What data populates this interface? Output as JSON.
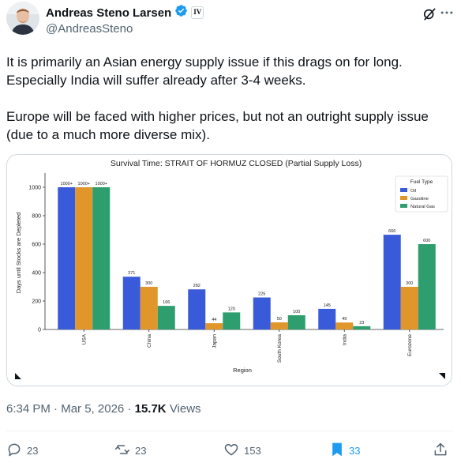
{
  "author": {
    "name": "Andreas Steno Larsen",
    "handle": "@AndreasSteno",
    "verified": true,
    "affiliate_badge": "IV"
  },
  "tweet": {
    "paragraph1": "It is primarily an Asian energy supply issue if this drags on for long. Especially India will suffer already after 3-4 weeks.",
    "paragraph2": "Europe will be faced with higher prices, but not an outright supply issue (due to a much more diverse mix).",
    "time": "6:34 PM",
    "date": "Mar 5, 2026",
    "separator": "·",
    "views": "15.7K",
    "views_label": "Views"
  },
  "actions": {
    "replies": "23",
    "reposts": "23",
    "likes": "153",
    "bookmarks": "33"
  },
  "colors": {
    "oil": "#3a5bd9",
    "gasoline": "#e0962b",
    "natural_gas": "#2e9e6f",
    "verified": "#1d9bf0",
    "bookmark": "#1d9bf0"
  },
  "icons": [
    "grok-icon",
    "more-icon",
    "reply-icon",
    "repost-icon",
    "like-icon",
    "bookmark-icon",
    "share-icon",
    "expand-icon",
    "collapse-icon",
    "verified-icon"
  ],
  "chart_data": {
    "type": "bar",
    "title": "Survival Time: STRAIT OF HORMUZ CLOSED (Partial Supply Loss)",
    "xlabel": "Region",
    "ylabel": "Days until Stocks are Depleted",
    "ylim": [
      0,
      1100
    ],
    "yticks": [
      0,
      200,
      400,
      600,
      800,
      1000
    ],
    "categories": [
      "USA",
      "China",
      "Japan",
      "South Korea",
      "India",
      "Eurozone"
    ],
    "legend_title": "Fuel Type",
    "legend_position": "top-right",
    "grid": false,
    "series": [
      {
        "name": "Oil",
        "color": "#3a5bd9",
        "values": [
          1000,
          371,
          282,
          225,
          145,
          666
        ],
        "labels": [
          "1000+",
          "371",
          "282",
          "225",
          "145",
          "666"
        ]
      },
      {
        "name": "Gasoline",
        "color": "#e0962b",
        "values": [
          1000,
          300,
          44,
          50,
          49,
          300
        ],
        "labels": [
          "1000+",
          "300",
          "44",
          "50",
          "49",
          "300"
        ]
      },
      {
        "name": "Natural Gas",
        "color": "#2e9e6f",
        "values": [
          1000,
          166,
          120,
          100,
          23,
          600
        ],
        "labels": [
          "1000+",
          "166",
          "120",
          "100",
          "23",
          "600"
        ]
      }
    ]
  }
}
